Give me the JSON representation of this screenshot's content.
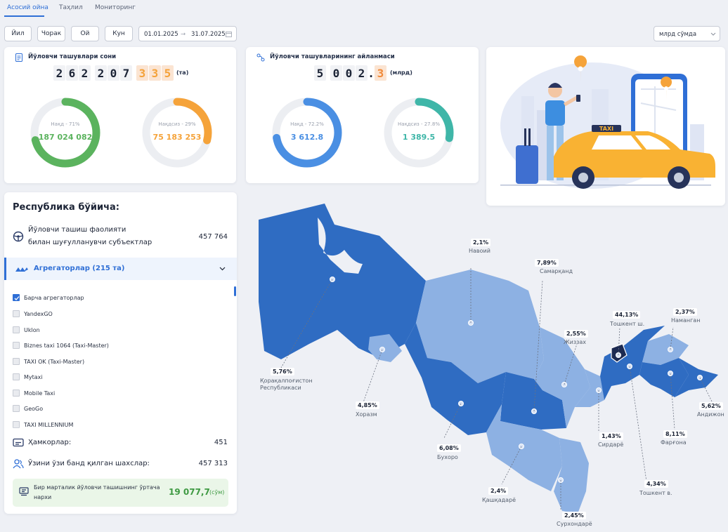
{
  "tabs": [
    {
      "label": "Асосий ойна",
      "active": true
    },
    {
      "label": "Таҳлил",
      "active": false
    },
    {
      "label": "Мониторинг",
      "active": false
    }
  ],
  "filters": {
    "periods": [
      "Йил",
      "Чорак",
      "Ой",
      "Кун"
    ],
    "date_from": "01.01.2025",
    "date_to": "31.07.2025",
    "unit": "млрд сўмда"
  },
  "card_passengers": {
    "title": "Йўловчи ташувлари сони",
    "digits": [
      "2",
      "6",
      "2",
      "2",
      "0",
      "7",
      "3",
      "3",
      "5"
    ],
    "unit": "(та)",
    "cash_label": "Нақд - 71%",
    "cash_value": "187 024 082",
    "cash_fraction": 0.71,
    "noncash_label": "Нақдсиз - 29%",
    "noncash_value": "75 183 253",
    "noncash_fraction": 0.29
  },
  "card_turnover": {
    "title": "Йўловчи ташувларининг айланмаси",
    "digits": [
      "5",
      "0",
      "0",
      "2",
      ".",
      "3"
    ],
    "unit": "(млрд)",
    "cash_label": "Нақд - 72.2%",
    "cash_value": "3 612.8",
    "cash_fraction": 0.722,
    "noncash_label": "Нақдсиз - 27.8%",
    "noncash_value": "1 389.5",
    "noncash_fraction": 0.278
  },
  "left_panel": {
    "title": "Республика бўйича:",
    "subjects_label_1": "Йўловчи ташиш фаолияти",
    "subjects_label_2": "билан шуғулланувчи субъектлар",
    "subjects_value": "457 764",
    "aggregators_label": "Агрегаторлар (215 та)",
    "aggregators": [
      {
        "label": "Барча агрегаторлар",
        "checked": true
      },
      {
        "label": "YandexGO",
        "checked": false
      },
      {
        "label": "Uklon",
        "checked": false
      },
      {
        "label": "Biznes taxi 1064 (Taxi-Master)",
        "checked": false
      },
      {
        "label": "TAXI OK (Taxi-Master)",
        "checked": false
      },
      {
        "label": "Mytaxi",
        "checked": false
      },
      {
        "label": "Mobile Taxi",
        "checked": false
      },
      {
        "label": "GeoGo",
        "checked": false
      },
      {
        "label": "TAXI MILLENNIUM",
        "checked": false
      }
    ],
    "partners_label": "Ҳамкорлар:",
    "partners_value": "451",
    "selfemployed_label": "Ўзини ўзи банд қилган шахслар:",
    "selfemployed_value": "457 313",
    "price_label_1": "Бир марталик йўловчи ташишнинг ўртача",
    "price_label_2": "нархи",
    "price_value": "19 077,7",
    "price_unit": "(сўм)"
  },
  "illustration": {
    "sign_text": "TAXI"
  },
  "regions": [
    {
      "pct": "5,76%",
      "name": "Қорақалпоғистон Республикаси"
    },
    {
      "pct": "2,1%",
      "name": "Навоий"
    },
    {
      "pct": "7,89%",
      "name": "Самарқанд"
    },
    {
      "pct": "44,13%",
      "name": "Тошкент ш."
    },
    {
      "pct": "2,37%",
      "name": "Наманган"
    },
    {
      "pct": "2,55%",
      "name": "Жиззах"
    },
    {
      "pct": "4,85%",
      "name": "Хоразм"
    },
    {
      "pct": "6,08%",
      "name": "Бухоро"
    },
    {
      "pct": "1,43%",
      "name": "Сирдарё"
    },
    {
      "pct": "8,11%",
      "name": "Фарғона"
    },
    {
      "pct": "5,62%",
      "name": "Андижон"
    },
    {
      "pct": "2,4%",
      "name": "Қашқадарё"
    },
    {
      "pct": "4,34%",
      "name": "Тошкент в."
    },
    {
      "pct": "2,45%",
      "name": "Сурхондарё"
    }
  ],
  "colors": {
    "accent": "#2f6fd6",
    "cash_green": "#5bb35e",
    "noncash_orange": "#f5a33a",
    "turnover_blue": "#4a8fe3",
    "turnover_teal": "#3fb6a8"
  }
}
